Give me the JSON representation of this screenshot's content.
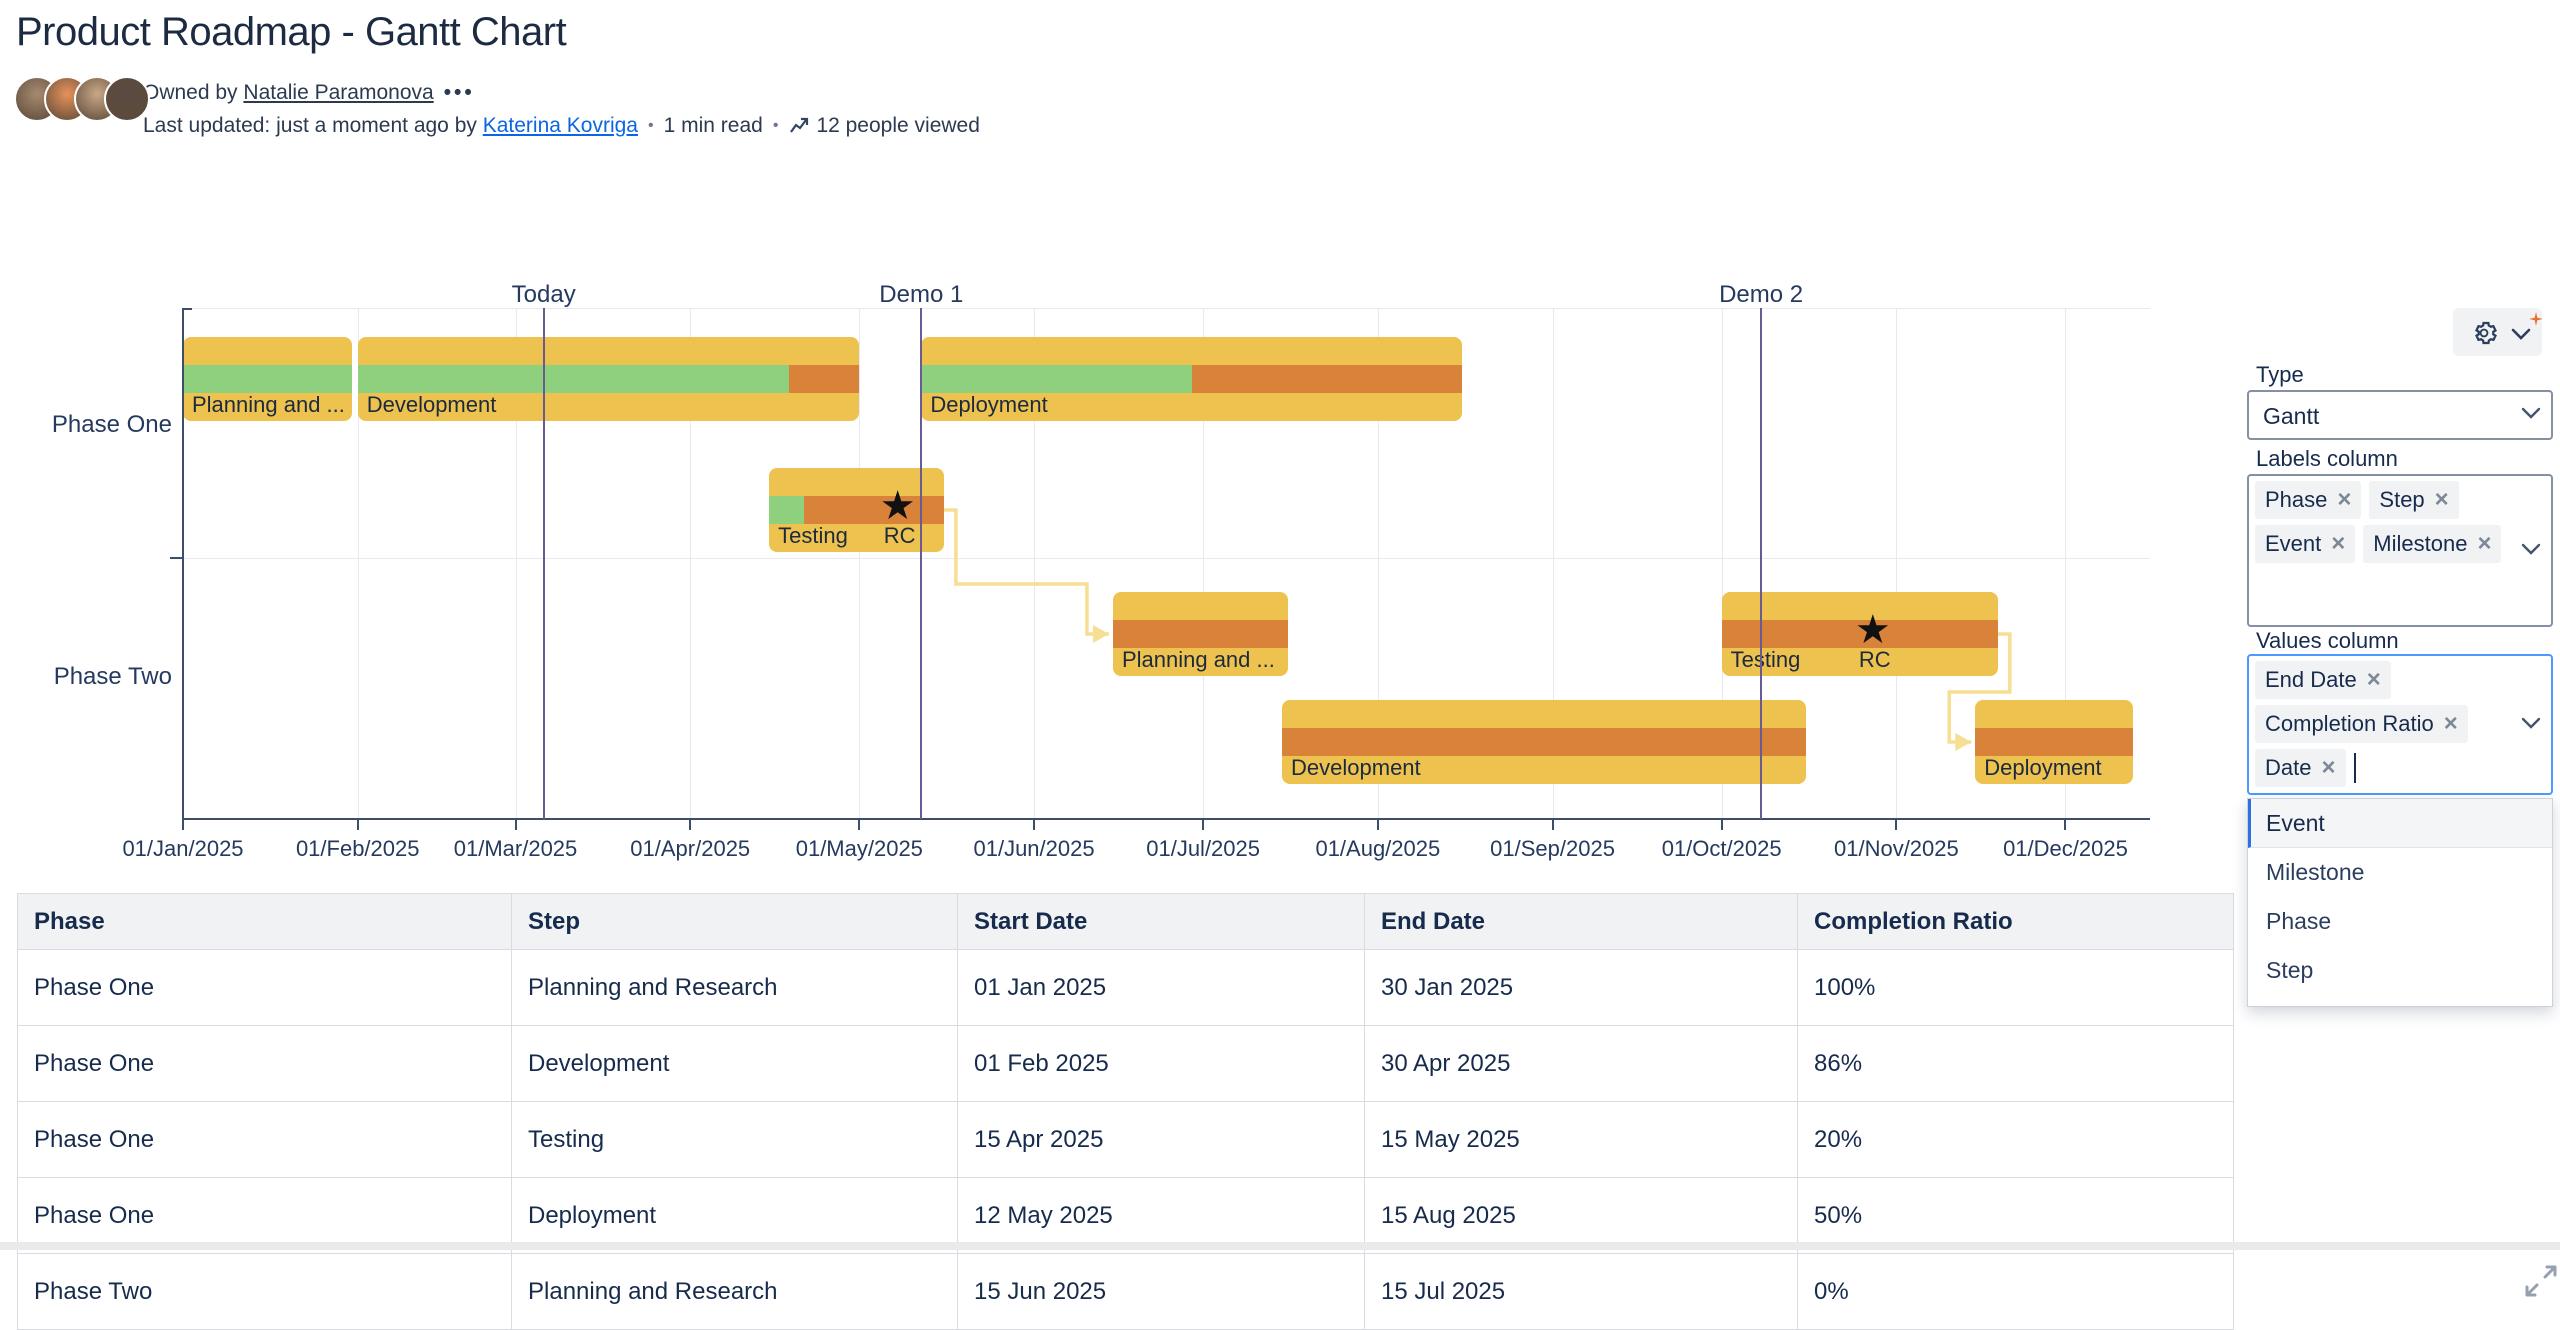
{
  "page": {
    "title": "Product Roadmap - Gantt Chart"
  },
  "byline": {
    "owned_by_label": "Owned by",
    "owner": "Natalie Paramonova",
    "more": "•••",
    "updated_prefix": "Last updated: just a moment ago by",
    "updater": "Katerina Kovriga",
    "separator": "•",
    "read_time": "1 min read",
    "views": "12 people viewed",
    "avatar_colors": [
      "#a78a70",
      "#e8925a",
      "#c9a886",
      "#5a4a42"
    ]
  },
  "chart_data": {
    "type": "gantt",
    "axis_start": "2025-01-01",
    "axis_end": "2025-12-16",
    "ticks": [
      {
        "label": "01/Jan/2025",
        "date": "2025-01-01"
      },
      {
        "label": "01/Feb/2025",
        "date": "2025-02-01"
      },
      {
        "label": "01/Mar/2025",
        "date": "2025-03-01"
      },
      {
        "label": "01/Apr/2025",
        "date": "2025-04-01"
      },
      {
        "label": "01/May/2025",
        "date": "2025-05-01"
      },
      {
        "label": "01/Jun/2025",
        "date": "2025-06-01"
      },
      {
        "label": "01/Jul/2025",
        "date": "2025-07-01"
      },
      {
        "label": "01/Aug/2025",
        "date": "2025-08-01"
      },
      {
        "label": "01/Sep/2025",
        "date": "2025-09-01"
      },
      {
        "label": "01/Oct/2025",
        "date": "2025-10-01"
      },
      {
        "label": "01/Nov/2025",
        "date": "2025-11-01"
      },
      {
        "label": "01/Dec/2025",
        "date": "2025-12-01"
      }
    ],
    "rows": [
      "Phase One",
      "Phase Two"
    ],
    "markers": [
      {
        "label": "Today",
        "date": "2025-03-06"
      },
      {
        "label": "Demo 1",
        "date": "2025-05-12"
      },
      {
        "label": "Demo 2",
        "date": "2025-10-08"
      }
    ],
    "bars": [
      {
        "phase": 0,
        "lane": 0,
        "label": "Planning and ...",
        "start": "2025-01-01",
        "end": "2025-01-30",
        "completion_pct": 100
      },
      {
        "phase": 0,
        "lane": 0,
        "label": "Development",
        "start": "2025-02-01",
        "end": "2025-04-30",
        "completion_pct": 86
      },
      {
        "phase": 0,
        "lane": 1,
        "label": "Testing",
        "start": "2025-04-15",
        "end": "2025-05-15",
        "completion_pct": 20,
        "milestone": {
          "label": "RC",
          "date": "2025-05-08"
        }
      },
      {
        "phase": 0,
        "lane": 0,
        "label": "Deployment",
        "start": "2025-05-12",
        "end": "2025-08-15",
        "completion_pct": 50
      },
      {
        "phase": 1,
        "lane": 0,
        "label": "Planning and ...",
        "start": "2025-06-15",
        "end": "2025-07-15",
        "completion_pct": 0
      },
      {
        "phase": 1,
        "lane": 1,
        "label": "Development",
        "start": "2025-07-15",
        "end": "2025-10-15",
        "completion_pct": 0
      },
      {
        "phase": 1,
        "lane": 0,
        "label": "Testing",
        "start": "2025-10-01",
        "end": "2025-11-18",
        "completion_pct": 0,
        "milestone": {
          "label": "RC",
          "date": "2025-10-28"
        }
      },
      {
        "phase": 1,
        "lane": 1,
        "label": "Deployment",
        "start": "2025-11-15",
        "end": "2025-12-12",
        "completion_pct": 0
      }
    ],
    "connectors": [
      {
        "from": 2,
        "to": 4
      },
      {
        "from": 6,
        "to": 7
      }
    ],
    "colors": {
      "bar": "#edc24f",
      "completed": "#8ed07e",
      "remaining": "#d9823a",
      "connector": "#f6de92",
      "marker": "#6a5a93",
      "axis": "#3d4f68",
      "grid": "#e8e9ec",
      "text": "#253a5e"
    }
  },
  "panel": {
    "type_label": "Type",
    "type_value": "Gantt",
    "labels_label": "Labels column",
    "label_tags": [
      "Phase",
      "Step",
      "Event",
      "Milestone"
    ],
    "values_label": "Values column",
    "value_tags": [
      "End Date",
      "Completion Ratio",
      "Date"
    ],
    "dropdown_options": [
      "Event",
      "Milestone",
      "Phase",
      "Step"
    ],
    "highlighted_option": "Event"
  },
  "table": {
    "headers": [
      "Phase",
      "Step",
      "Start Date",
      "End Date",
      "Completion Ratio"
    ],
    "rows": [
      [
        "Phase One",
        "Planning and Research",
        "01 Jan 2025",
        "30 Jan 2025",
        "100%"
      ],
      [
        "Phase One",
        "Development",
        "01 Feb 2025",
        "30 Apr 2025",
        "86%"
      ],
      [
        "Phase One",
        "Testing",
        "15 Apr 2025",
        "15 May 2025",
        "20%"
      ],
      [
        "Phase One",
        "Deployment",
        "12 May 2025",
        "15 Aug 2025",
        "50%"
      ],
      [
        "Phase Two",
        "Planning and Research",
        "15 Jun 2025",
        "15 Jul 2025",
        "0%"
      ]
    ]
  }
}
